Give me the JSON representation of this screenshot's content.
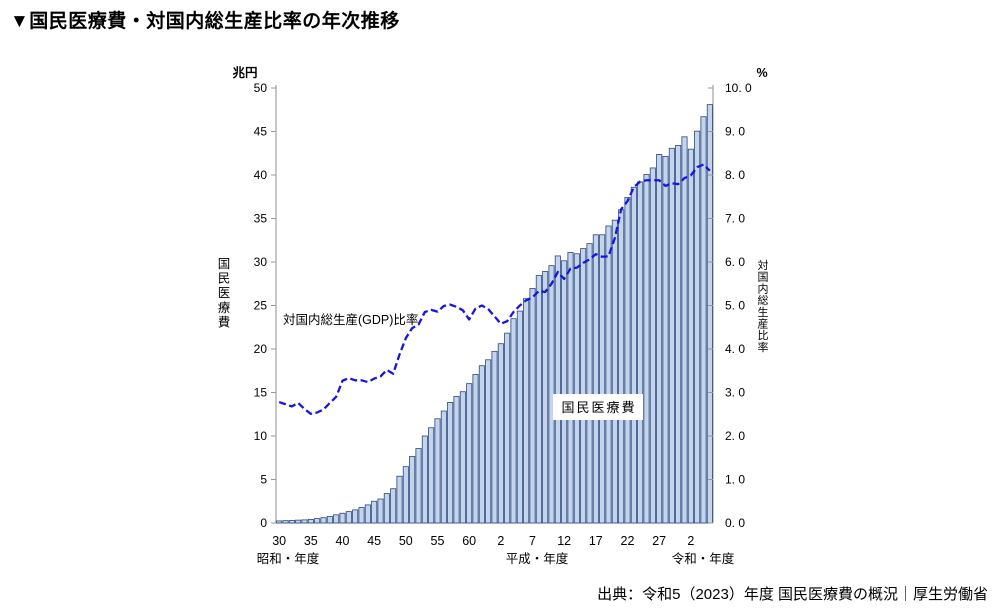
{
  "title": "▼国民医療費・対国内総生産比率の年次推移",
  "source": "出典：令和5（2023）年度 国民医療費の概況｜厚生労働省",
  "chart_data": {
    "type": "bar",
    "subtype": "bar+line dual axis",
    "title": "国民医療費・対国内総生産比率の年次推移",
    "grid": false,
    "legend_position": "none",
    "years": [
      1955,
      1956,
      1957,
      1958,
      1959,
      1960,
      1961,
      1962,
      1963,
      1964,
      1965,
      1966,
      1967,
      1968,
      1969,
      1970,
      1971,
      1972,
      1973,
      1974,
      1975,
      1976,
      1977,
      1978,
      1979,
      1980,
      1981,
      1982,
      1983,
      1984,
      1985,
      1986,
      1987,
      1988,
      1989,
      1990,
      1991,
      1992,
      1993,
      1994,
      1995,
      1996,
      1997,
      1998,
      1999,
      2000,
      2001,
      2002,
      2003,
      2004,
      2005,
      2006,
      2007,
      2008,
      2009,
      2010,
      2011,
      2012,
      2013,
      2014,
      2015,
      2016,
      2017,
      2018,
      2019,
      2020,
      2021,
      2022,
      2023
    ],
    "series": [
      {
        "name": "国民医療費",
        "type": "bar",
        "axis": "left",
        "unit": "兆円",
        "values": [
          0.24,
          0.27,
          0.3,
          0.33,
          0.36,
          0.41,
          0.51,
          0.61,
          0.76,
          0.94,
          1.12,
          1.31,
          1.51,
          1.78,
          2.08,
          2.5,
          2.76,
          3.39,
          3.94,
          5.38,
          6.48,
          7.66,
          8.56,
          10.0,
          10.95,
          11.98,
          12.87,
          13.86,
          14.54,
          15.09,
          16.02,
          17.07,
          18.08,
          18.76,
          19.73,
          20.61,
          21.82,
          23.48,
          24.36,
          25.79,
          26.96,
          28.45,
          28.91,
          29.58,
          30.7,
          30.14,
          31.1,
          30.95,
          31.54,
          32.11,
          33.13,
          33.13,
          34.14,
          34.81,
          36.01,
          37.42,
          38.59,
          39.21,
          40.06,
          40.81,
          42.36,
          42.14,
          43.07,
          43.4,
          44.39,
          42.97,
          45.04,
          46.7,
          48.09
        ]
      },
      {
        "name": "対国内総生産(GDP)比率",
        "type": "line",
        "axis": "right",
        "unit": "%",
        "values": [
          2.78,
          2.73,
          2.68,
          2.76,
          2.62,
          2.51,
          2.54,
          2.61,
          2.76,
          2.9,
          3.27,
          3.33,
          3.28,
          3.28,
          3.24,
          3.32,
          3.37,
          3.52,
          3.43,
          3.87,
          4.25,
          4.48,
          4.56,
          4.85,
          4.9,
          4.86,
          4.99,
          5.02,
          4.97,
          4.89,
          4.68,
          4.93,
          5.0,
          4.92,
          4.75,
          4.58,
          4.64,
          4.85,
          5.0,
          5.12,
          5.19,
          5.33,
          5.31,
          5.5,
          5.77,
          5.61,
          5.85,
          5.87,
          5.98,
          6.06,
          6.18,
          6.12,
          6.13,
          6.55,
          7.21,
          7.4,
          7.72,
          7.85,
          7.88,
          7.88,
          7.88,
          7.75,
          7.81,
          7.79,
          7.93,
          7.99,
          8.18,
          8.24,
          8.1
        ]
      }
    ],
    "left_axis": {
      "unit_label": "兆円",
      "axis_title": "国民医療費",
      "min": 0,
      "max": 50,
      "step": 5,
      "tick_labels": [
        "0",
        "5",
        "10",
        "15",
        "20",
        "25",
        "30",
        "35",
        "40",
        "45",
        "50"
      ]
    },
    "right_axis": {
      "unit_label": "%",
      "axis_title": "対国内総生産比率",
      "min": 0,
      "max": 10,
      "step": 1,
      "tick_labels": [
        "0. 0",
        "1. 0",
        "2. 0",
        "3. 0",
        "4. 0",
        "5. 0",
        "6. 0",
        "7. 0",
        "8. 0",
        "9. 0",
        "10. 0"
      ]
    },
    "x_axis": {
      "tick_labels": [
        "30",
        "35",
        "40",
        "45",
        "50",
        "55",
        "60",
        "2",
        "7",
        "12",
        "17",
        "22",
        "27",
        "2"
      ],
      "tick_years": [
        1955,
        1960,
        1965,
        1970,
        1975,
        1980,
        1985,
        1990,
        1995,
        2000,
        2005,
        2010,
        2015,
        2020
      ],
      "era_labels": [
        "昭和・年度",
        "平成・年度",
        "令和・年度"
      ]
    },
    "annotations": {
      "line_label": "対国内総生産(GDP)比率",
      "bar_label": "国民医療費"
    },
    "colors": {
      "bar_fill": "#c3d4ec",
      "bar_stroke": "#2b4a7d",
      "line": "#1616dd",
      "axis": "#999999",
      "text": "#000000"
    }
  }
}
